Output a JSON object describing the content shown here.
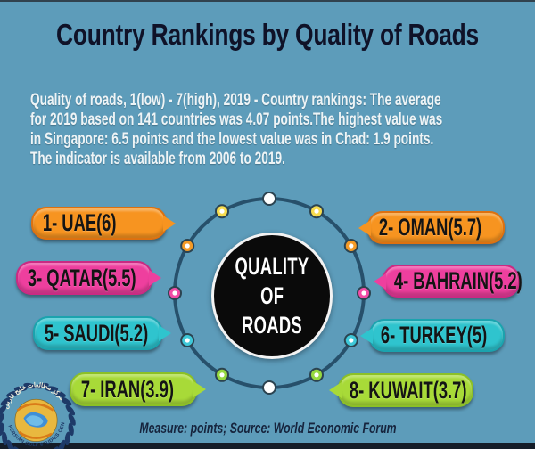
{
  "title": "Country Rankings by Quality of Roads",
  "description": {
    "line1": "Quality of roads, 1(low) - 7(high), 2019 - Country rankings: The average",
    "line2": "for 2019 based on 141 countries was 4.07 points.The highest value was",
    "line3": "in Singapore: 6.5 points and the lowest value was in Chad: 1.9 points.",
    "line4": "The indicator is available from 2006 to 2019."
  },
  "center_badge": {
    "line1": "QUALITY",
    "line2": "OF",
    "line3": "ROADS"
  },
  "rankings": [
    {
      "rank": 1,
      "country": "UAE",
      "points": 6,
      "label": "1- UAE",
      "value": "(6)",
      "color": "#F79420",
      "border": "#DD7110",
      "side": "left"
    },
    {
      "rank": 2,
      "country": "OMAN",
      "points": 5.7,
      "label": "2- OMAN",
      "value": "(5.7)",
      "color": "#F79420",
      "border": "#DD7110",
      "side": "right"
    },
    {
      "rank": 3,
      "country": "QATAR",
      "points": 5.5,
      "label": "3- QATAR",
      "value": "(5.5)",
      "color": "#EE3F9E",
      "border": "#C92B83",
      "side": "left"
    },
    {
      "rank": 4,
      "country": "BAHRAIN",
      "points": 5.2,
      "label": "4- BAHRAIN",
      "value": "(5.2)",
      "color": "#EE3F9E",
      "border": "#C92B83",
      "side": "right"
    },
    {
      "rank": 5,
      "country": "SAUDI",
      "points": 5.2,
      "label": "5- SAUDI",
      "value": "(5.2)",
      "color": "#2FC4CE",
      "border": "#1BA3AE",
      "side": "left"
    },
    {
      "rank": 6,
      "country": "TURKEY",
      "points": 5,
      "label": "6- TURKEY",
      "value": "(5)",
      "color": "#2FC4CE",
      "border": "#1BA3AE",
      "side": "right"
    },
    {
      "rank": 7,
      "country": "IRAN",
      "points": 3.9,
      "label": "7- IRAN",
      "value": "(3.9)",
      "color": "#A8DA38",
      "border": "#8CC026",
      "side": "left"
    },
    {
      "rank": 8,
      "country": "KUWAIT",
      "points": 3.7,
      "label": "8- KUWAIT",
      "value": "(3.7)",
      "color": "#A8DA38",
      "border": "#8CC026",
      "side": "right"
    }
  ],
  "ring": {
    "stroke_color": "#27506B",
    "dot_outline": "#2B4350",
    "dot_colors": [
      "#FFFFFF",
      "#F6DC4E",
      "#F59B26",
      "#F24BA6",
      "#3EC8D8",
      "#95D93F",
      "#FFFFFF",
      "#95D93F",
      "#3EC8D8",
      "#F24BA6",
      "#F59B26",
      "#F6DC4E"
    ]
  },
  "footer": {
    "source_note": "Measure: points; Source: World Economic Forum"
  },
  "logo": {
    "bottom_text": "PERSIAN GULF STUDIES CENTER",
    "top_text": "مركز مطالعات خليج فارس"
  },
  "chart_data": {
    "type": "table",
    "title": "Country Rankings by Quality of Roads",
    "subtitle": "Quality of roads, 1(low) - 7(high), 2019 - Country rankings",
    "categories": [
      "UAE",
      "OMAN",
      "QATAR",
      "BAHRAIN",
      "SAUDI",
      "TURKEY",
      "IRAN",
      "KUWAIT"
    ],
    "ranks": [
      1,
      2,
      3,
      4,
      5,
      6,
      7,
      8
    ],
    "values": [
      6,
      5.7,
      5.5,
      5.2,
      5.2,
      5,
      3.9,
      3.7
    ],
    "scale": "1(low) - 7(high)",
    "year": 2019,
    "average_2019_141_countries": 4.07,
    "highest": {
      "country": "Singapore",
      "value": 6.5
    },
    "lowest": {
      "country": "Chad",
      "value": 1.9
    },
    "indicator_available": "2006 to 2019",
    "measure": "points",
    "source": "World Economic Forum"
  }
}
